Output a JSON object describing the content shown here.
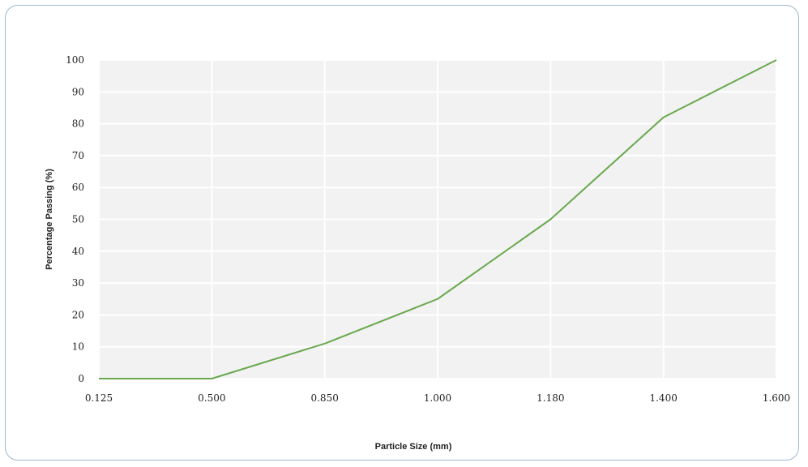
{
  "chart_data": {
    "type": "line",
    "title": "",
    "xlabel": "Particle Size (mm)",
    "ylabel": "Percentage Passing (%)",
    "categories": [
      "0.125",
      "0.500",
      "0.850",
      "1.000",
      "1.180",
      "1.400",
      "1.600"
    ],
    "series": [
      {
        "name": "",
        "values": [
          0,
          0,
          11,
          25,
          50,
          82,
          100
        ],
        "color": "#6aa84f"
      }
    ],
    "yticks": [
      "0",
      "10",
      "20",
      "30",
      "40",
      "50",
      "60",
      "70",
      "80",
      "90",
      "100"
    ],
    "ylim": [
      0,
      100
    ],
    "grid": true,
    "legend": "none"
  },
  "colors": {
    "plot_background": "#f2f2f2",
    "gridline": "#ffffff",
    "frame_border": "#9fb6cf"
  }
}
